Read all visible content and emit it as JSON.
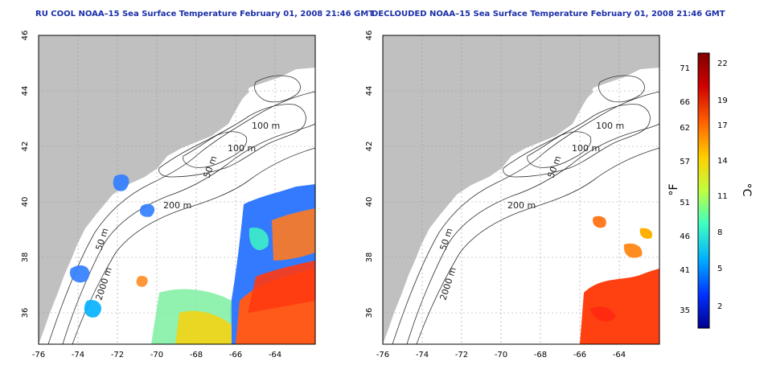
{
  "panels": [
    {
      "id": "left",
      "title": "RU COOL NOAA–15 Sea Surface Temperature February 01, 2008 21:46 GMT",
      "xticks": [
        "-76",
        "-74",
        "-72",
        "-70",
        "-68",
        "-66",
        "-64"
      ],
      "yticks": [
        "36",
        "38",
        "40",
        "42",
        "44",
        "46"
      ],
      "contours": [
        "100 m",
        "100 m",
        "50 m",
        "200 m",
        "50 m",
        "2000 m"
      ]
    },
    {
      "id": "right",
      "title": "DECLOUDED NOAA–15 Sea Surface Temperature February 01, 2008 21:46 GMT",
      "xticks": [
        "-76",
        "-74",
        "-72",
        "-70",
        "-68",
        "-66",
        "-64"
      ],
      "yticks": [
        "36",
        "38",
        "40",
        "42",
        "44",
        "46"
      ],
      "contours": [
        "100 m",
        "100 m",
        "50 m",
        "200 m",
        "50 m",
        "2000 m"
      ]
    }
  ],
  "colorbar": {
    "fahrenheit_label": "°F",
    "celsius_label": "°C",
    "fahrenheit_ticks": [
      "71",
      "66",
      "62",
      "57",
      "51",
      "46",
      "41",
      "35"
    ],
    "celsius_ticks": [
      "22",
      "19",
      "17",
      "14",
      "11",
      "8",
      "5",
      "2"
    ],
    "colors": [
      "#00008f",
      "#0030ff",
      "#00b0ff",
      "#40ffc0",
      "#c0ff40",
      "#ffd000",
      "#ff6000",
      "#d00000",
      "#800000"
    ]
  },
  "colors": {
    "land": "#c0c0c0",
    "ocean": "#ffffff",
    "title": "#1b2fa8"
  }
}
